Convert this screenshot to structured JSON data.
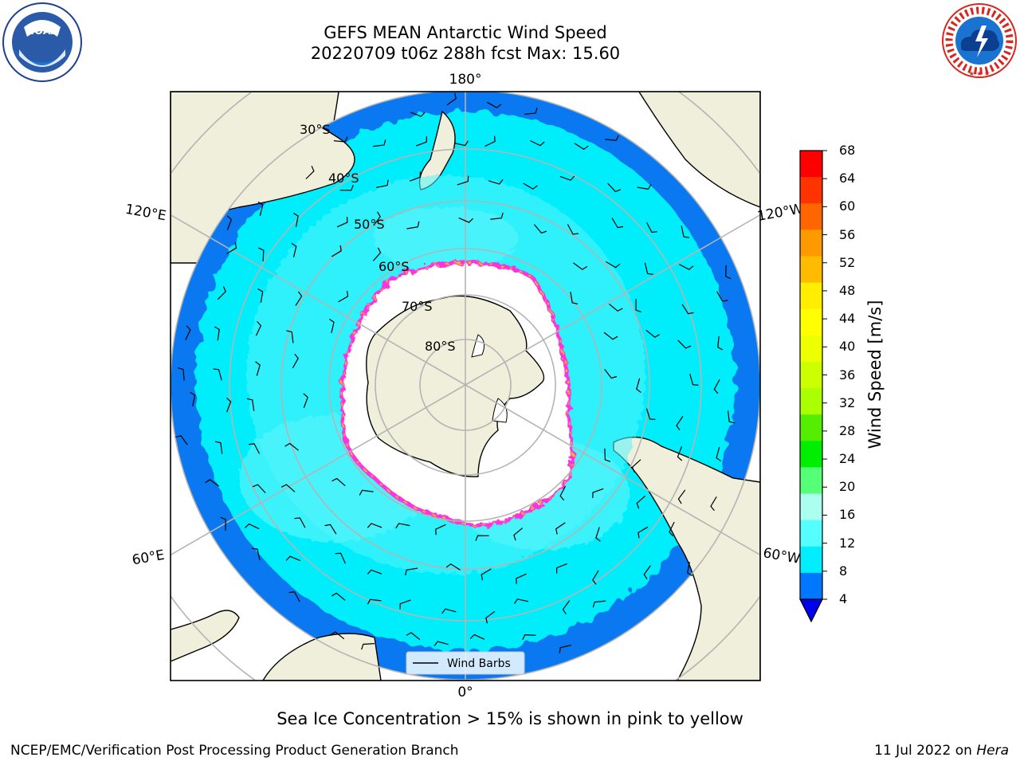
{
  "title_line1": "GEFS MEAN Antarctic Wind Speed",
  "title_line2": "20220709 t06z 288h fcst   Max: 15.60",
  "map": {
    "projection": "south-polar-stereographic",
    "longitude_labels": [
      "180°",
      "120°E",
      "120°W",
      "60°E",
      "60°W",
      "0°"
    ],
    "latitude_labels": [
      "30°S",
      "40°S",
      "50°S",
      "60°S",
      "70°S",
      "80°S"
    ],
    "legend_entry": "Wind Barbs",
    "colors": {
      "land": "#efefdb",
      "ocean_4_8": "#0a78f0",
      "ocean_8_12": "#00eefc",
      "ocean_12_16": "#55f5fb",
      "ice": "#ffffff",
      "ice_edge_pink": "#ff33dd",
      "ice_edge_yellow": "#ffb020"
    }
  },
  "colorbar": {
    "label": "Wind Speed [m/s]",
    "ticks": [
      "68",
      "64",
      "60",
      "56",
      "52",
      "48",
      "44",
      "40",
      "36",
      "32",
      "28",
      "24",
      "20",
      "16",
      "12",
      "8",
      "4"
    ],
    "colors_top_to_bottom": [
      "#ff0000",
      "#ff3300",
      "#ff6600",
      "#ff9900",
      "#ffbb00",
      "#ffee00",
      "#ffff00",
      "#eeff00",
      "#ccff00",
      "#aaff00",
      "#55ee00",
      "#00ee00",
      "#55ff77",
      "#aaffee",
      "#55ffff",
      "#00eeff",
      "#0077ff"
    ],
    "extend_min_color": "#0000ee"
  },
  "caption": "Sea Ice Concentration > 15% is shown in pink to yellow",
  "credit": "NCEP/EMC/Verification Post Processing Product Generation Branch",
  "date_stamp": "11 Jul 2022 on",
  "machine": "Hera",
  "logos": [
    "NOAA",
    "NATIONAL WEATHER SERVICE"
  ]
}
